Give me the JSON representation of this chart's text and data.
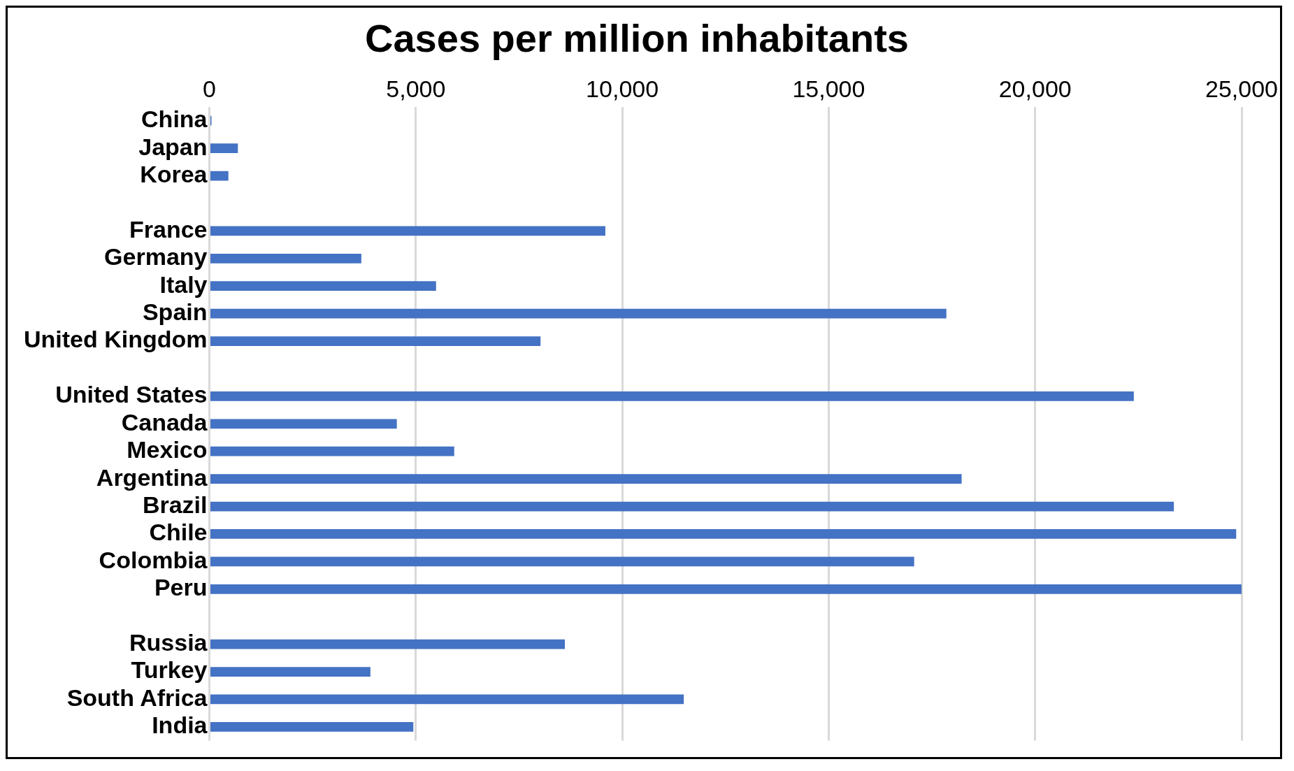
{
  "chart_data": {
    "type": "bar",
    "orientation": "horizontal",
    "title": "Cases per million inhabitants",
    "categories": [
      "China",
      "Japan",
      "Korea",
      null,
      "France",
      "Germany",
      "Italy",
      "Spain",
      "United Kingdom",
      null,
      "United States",
      "Canada",
      "Mexico",
      "Argentina",
      "Brazil",
      "Chile",
      "Colombia",
      "Peru",
      null,
      "Russia",
      "Turkey",
      "South Africa",
      "India"
    ],
    "values": [
      50,
      690,
      460,
      null,
      9590,
      3680,
      5490,
      17850,
      8020,
      null,
      22390,
      4540,
      5930,
      18220,
      23360,
      24870,
      17070,
      25000,
      null,
      8610,
      3900,
      11490,
      4940
    ],
    "color": "#4472c4",
    "xlim": [
      0,
      25000
    ],
    "xticks": [
      {
        "value": 0,
        "label": "0"
      },
      {
        "value": 5000,
        "label": "5,000"
      },
      {
        "value": 10000,
        "label": "10,000"
      },
      {
        "value": 15000,
        "label": "15,000"
      },
      {
        "value": 20000,
        "label": "20,000"
      },
      {
        "value": 25000,
        "label": "25,000"
      }
    ],
    "grid": "x",
    "legend": false
  }
}
